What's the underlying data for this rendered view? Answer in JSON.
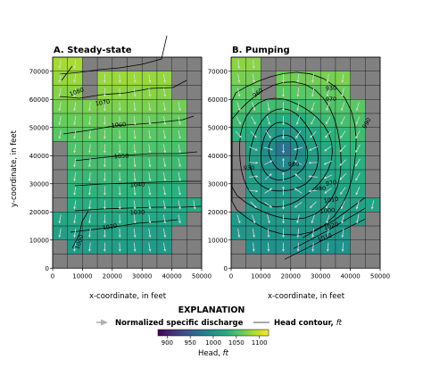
{
  "panels": [
    {
      "title": "A. Steady-state",
      "mode": "steady"
    },
    {
      "title": "B. Pumping",
      "mode": "pumping"
    }
  ],
  "axes": {
    "xlabel": "x-coordinate, in feet",
    "ylabel": "y-coordinate, in feet",
    "xlim": [
      0,
      50000
    ],
    "ylim": [
      0,
      75000
    ],
    "xticks": [
      0,
      10000,
      20000,
      30000,
      40000,
      50000
    ],
    "yticks": [
      0,
      10000,
      20000,
      30000,
      40000,
      50000,
      60000,
      70000
    ],
    "cell_size_ft": 5000,
    "inactive_color": "#808080",
    "grid_line_color": "#000000"
  },
  "chart_data": [
    {
      "type": "heatmap",
      "title": "A. Steady-state",
      "xlabel": "x-coordinate, in feet",
      "ylabel": "y-coordinate, in feet",
      "colormap": "viridis",
      "vmin": 880,
      "vmax": 1120,
      "contour_levels": [
        1000,
        1010,
        1020,
        1030,
        1040,
        1050,
        1060,
        1070,
        1080
      ],
      "contour_labels": [
        "1080",
        "1070",
        "1060",
        "1050",
        "1040",
        "1030",
        "1020",
        "1000"
      ]
    },
    {
      "type": "heatmap",
      "title": "B. Pumping",
      "xlabel": "x-coordinate, in feet",
      "ylabel": "y-coordinate, in feet",
      "colormap": "viridis",
      "vmin": 880,
      "vmax": 1120,
      "contour_levels": [
        930,
        950,
        960,
        970,
        980,
        990,
        1000,
        1010,
        1020,
        1030
      ],
      "contour_labels": [
        "960",
        "930",
        "970",
        "990",
        "950",
        "930",
        "970",
        "1000",
        "1010",
        "1020",
        "1030",
        "980"
      ]
    }
  ],
  "explanation": {
    "heading": "EXPLANATION",
    "quiver_label": "Normalized specific discharge",
    "contour_label_prefix": "Head contour, ",
    "contour_label_unit": "ft",
    "colorbar_ticks": [
      900,
      950,
      1000,
      1050,
      1100
    ],
    "colorbar_label_prefix": "Head, ",
    "colorbar_label_unit": "ft"
  }
}
